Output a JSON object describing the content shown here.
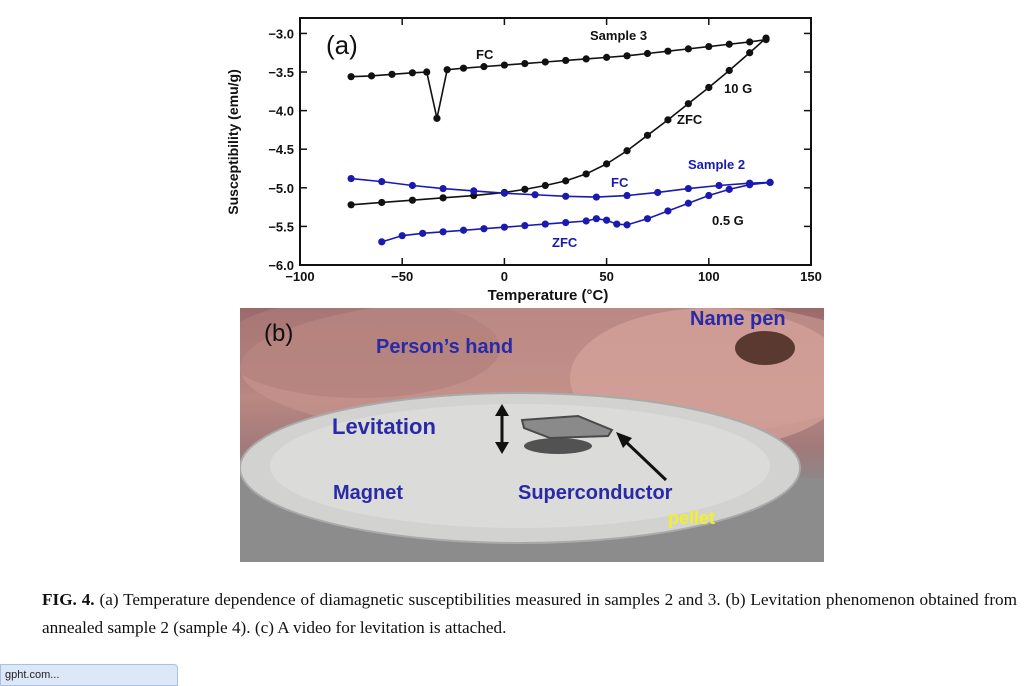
{
  "figure": {
    "panel_a": {
      "panel_label": "(a)",
      "annotations": [
        "Sample 3",
        "FC",
        "10 G",
        "ZFC",
        "Sample 2",
        "FC",
        "0.5 G",
        "ZFC"
      ]
    },
    "panel_b": {
      "panel_label": "(b)",
      "labels": {
        "hand": "Person’s hand",
        "pen": "Name pen",
        "levitation": "Levitation",
        "magnet": "Magnet",
        "superconductor": "Superconductor",
        "pellet": "pellet"
      }
    },
    "caption": {
      "fig_label": "FIG. 4.",
      "text": "(a) Temperature dependence of diamagnetic susceptibilities measured in samples 2 and 3. (b) Levitation phenomenon obtained from annealed sample 2 (sample 4). (c) A video for levitation is attached."
    }
  },
  "statusbar": {
    "text": "gpht.com..."
  },
  "colors": {
    "sample3": "#111111",
    "sample2": "#1a1ab0",
    "caption": "#111111"
  },
  "chart_data": {
    "type": "line",
    "xlabel": "Temperature (°C)",
    "ylabel": "Susceptibility (emu/g)",
    "xlim": [
      -100,
      150
    ],
    "ylim": [
      -6.0,
      -2.8
    ],
    "xticks": [
      -100,
      -50,
      0,
      50,
      100,
      150
    ],
    "yticks": [
      -6.0,
      -5.5,
      -5.0,
      -4.5,
      -4.0,
      -3.5,
      -3.0
    ],
    "series": [
      {
        "name": "FC",
        "group": "Sample 3",
        "field": "10 G",
        "x": [
          -75,
          -65,
          -55,
          -45,
          -38,
          -33,
          -28,
          -20,
          -10,
          0,
          10,
          20,
          30,
          40,
          50,
          60,
          70,
          80,
          90,
          100,
          110,
          120,
          128
        ],
        "y": [
          -3.56,
          -3.55,
          -3.53,
          -3.51,
          -3.5,
          -4.1,
          -3.47,
          -3.45,
          -3.43,
          -3.41,
          -3.39,
          -3.37,
          -3.35,
          -3.33,
          -3.31,
          -3.29,
          -3.26,
          -3.23,
          -3.2,
          -3.17,
          -3.14,
          -3.11,
          -3.08
        ]
      },
      {
        "name": "ZFC",
        "group": "Sample 3",
        "field": "10 G",
        "x": [
          -75,
          -60,
          -45,
          -30,
          -15,
          0,
          10,
          20,
          30,
          40,
          50,
          60,
          70,
          80,
          90,
          100,
          110,
          120,
          128
        ],
        "y": [
          -5.22,
          -5.19,
          -5.16,
          -5.13,
          -5.1,
          -5.06,
          -5.02,
          -4.97,
          -4.91,
          -4.82,
          -4.69,
          -4.52,
          -4.32,
          -4.12,
          -3.91,
          -3.7,
          -3.48,
          -3.25,
          -3.06
        ]
      },
      {
        "name": "FC",
        "group": "Sample 2",
        "field": "0.5 G",
        "x": [
          -75,
          -60,
          -45,
          -30,
          -15,
          0,
          15,
          30,
          45,
          60,
          75,
          90,
          105,
          120,
          130
        ],
        "y": [
          -4.88,
          -4.92,
          -4.97,
          -5.01,
          -5.04,
          -5.07,
          -5.09,
          -5.11,
          -5.12,
          -5.1,
          -5.06,
          -5.01,
          -4.97,
          -4.94,
          -4.93
        ]
      },
      {
        "name": "ZFC",
        "group": "Sample 2",
        "field": "0.5 G",
        "x": [
          -60,
          -50,
          -40,
          -30,
          -20,
          -10,
          0,
          10,
          20,
          30,
          40,
          45,
          50,
          55,
          60,
          70,
          80,
          90,
          100,
          110,
          120,
          130
        ],
        "y": [
          -5.7,
          -5.62,
          -5.59,
          -5.57,
          -5.55,
          -5.53,
          -5.51,
          -5.49,
          -5.47,
          -5.45,
          -5.43,
          -5.4,
          -5.42,
          -5.47,
          -5.48,
          -5.4,
          -5.3,
          -5.2,
          -5.1,
          -5.02,
          -4.96,
          -4.93
        ]
      }
    ]
  }
}
